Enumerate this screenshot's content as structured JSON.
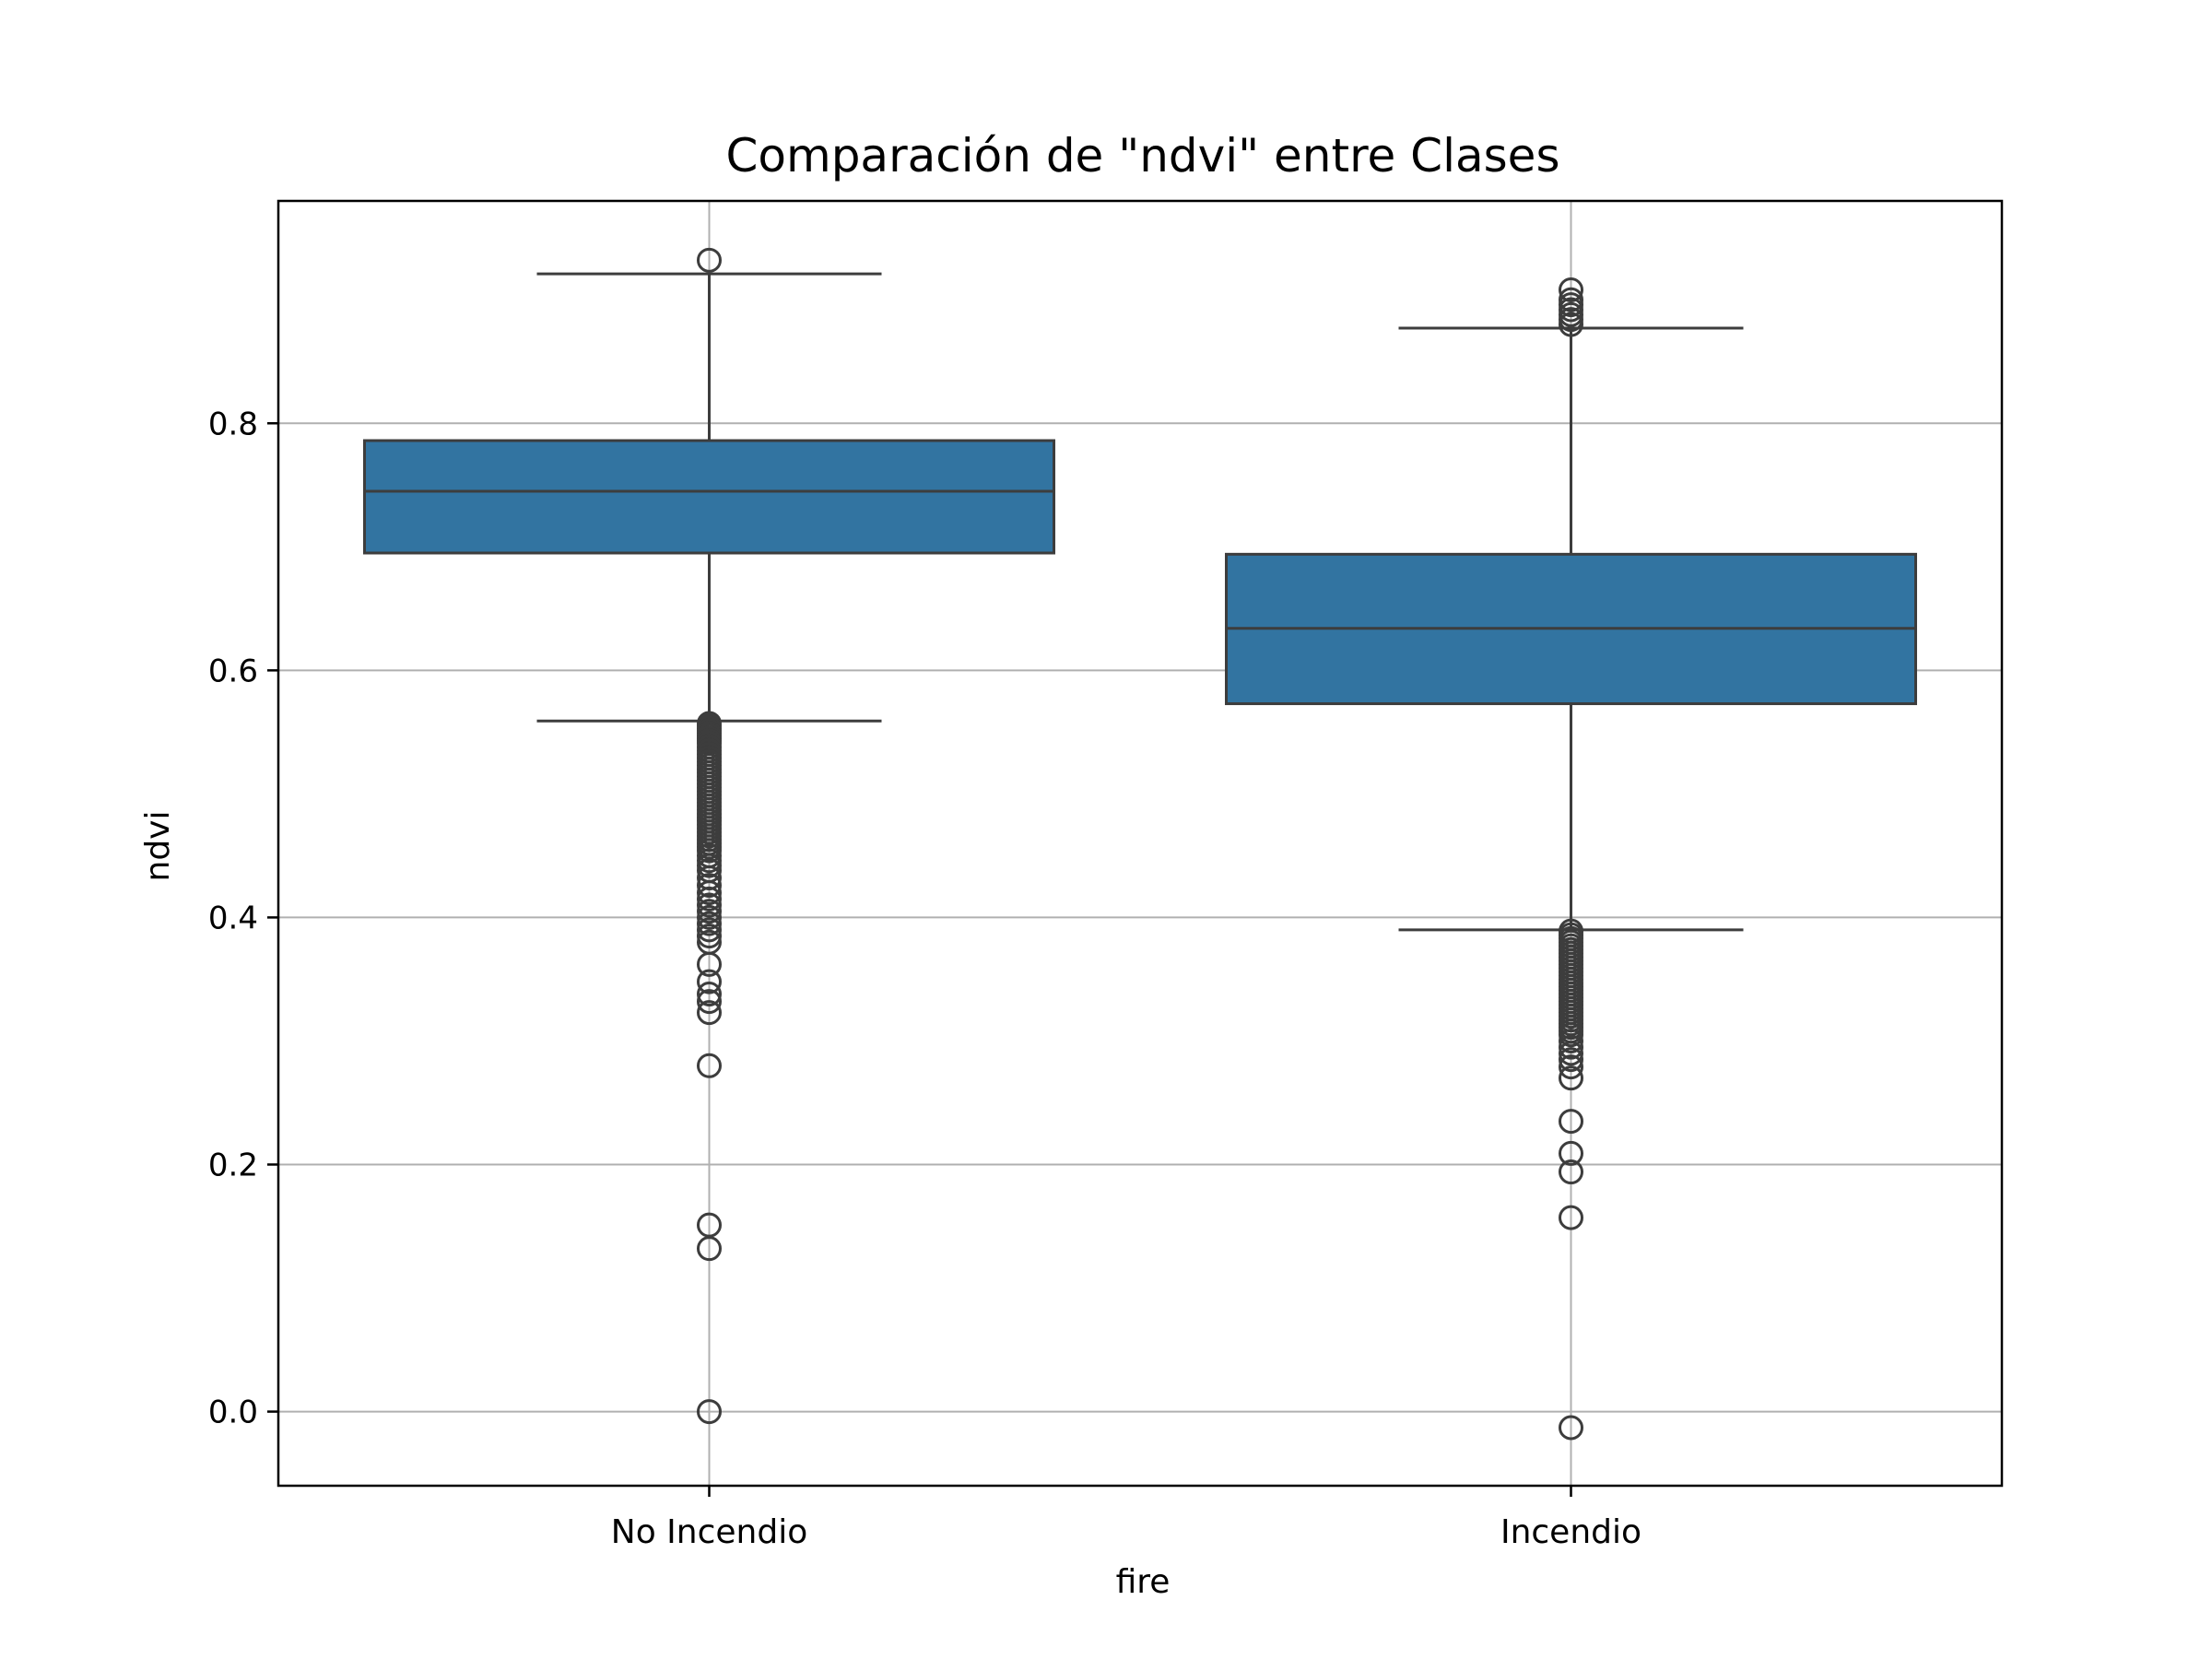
{
  "chart_data": {
    "type": "box",
    "title": "Comparación de \"ndvi\" entre Clases",
    "xlabel": "fire",
    "ylabel": "ndvi",
    "categories": [
      "No Incendio",
      "Incendio"
    ],
    "ylim": [
      -0.06,
      0.98
    ],
    "yticks": [
      0.0,
      0.2,
      0.4,
      0.6,
      0.8
    ],
    "ytick_labels": [
      "0.0",
      "0.2",
      "0.4",
      "0.6",
      "0.8"
    ],
    "grid": true,
    "colors": {
      "box": "#3274a1",
      "line": "#3d3d3d",
      "grid": "#b0b0b0",
      "frame": "#000000"
    },
    "boxes": [
      {
        "name": "No Incendio",
        "q1": 0.695,
        "median": 0.745,
        "q3": 0.786,
        "whisker_low": 0.559,
        "whisker_high": 0.921,
        "outliers": [
          0.932,
          0.557,
          0.555,
          0.553,
          0.551,
          0.549,
          0.547,
          0.545,
          0.543,
          0.541,
          0.538,
          0.535,
          0.532,
          0.529,
          0.526,
          0.523,
          0.52,
          0.517,
          0.514,
          0.511,
          0.508,
          0.505,
          0.502,
          0.499,
          0.496,
          0.493,
          0.49,
          0.487,
          0.484,
          0.481,
          0.478,
          0.475,
          0.472,
          0.469,
          0.466,
          0.463,
          0.46,
          0.457,
          0.454,
          0.45,
          0.446,
          0.442,
          0.438,
          0.432,
          0.426,
          0.42,
          0.415,
          0.41,
          0.405,
          0.4,
          0.395,
          0.39,
          0.385,
          0.38,
          0.362,
          0.348,
          0.338,
          0.332,
          0.323,
          0.28,
          0.151,
          0.132,
          0.0
        ]
      },
      {
        "name": "Incendio",
        "q1": 0.573,
        "median": 0.634,
        "q3": 0.694,
        "whisker_low": 0.39,
        "whisker_high": 0.877,
        "outliers": [
          0.908,
          0.9,
          0.896,
          0.892,
          0.888,
          0.884,
          0.88,
          0.389,
          0.386,
          0.383,
          0.38,
          0.377,
          0.374,
          0.371,
          0.368,
          0.365,
          0.362,
          0.359,
          0.356,
          0.353,
          0.35,
          0.347,
          0.344,
          0.341,
          0.338,
          0.335,
          0.332,
          0.329,
          0.326,
          0.323,
          0.32,
          0.317,
          0.314,
          0.311,
          0.308,
          0.305,
          0.3,
          0.295,
          0.29,
          0.285,
          0.279,
          0.27,
          0.235,
          0.209,
          0.194,
          0.157,
          -0.013
        ]
      }
    ]
  }
}
